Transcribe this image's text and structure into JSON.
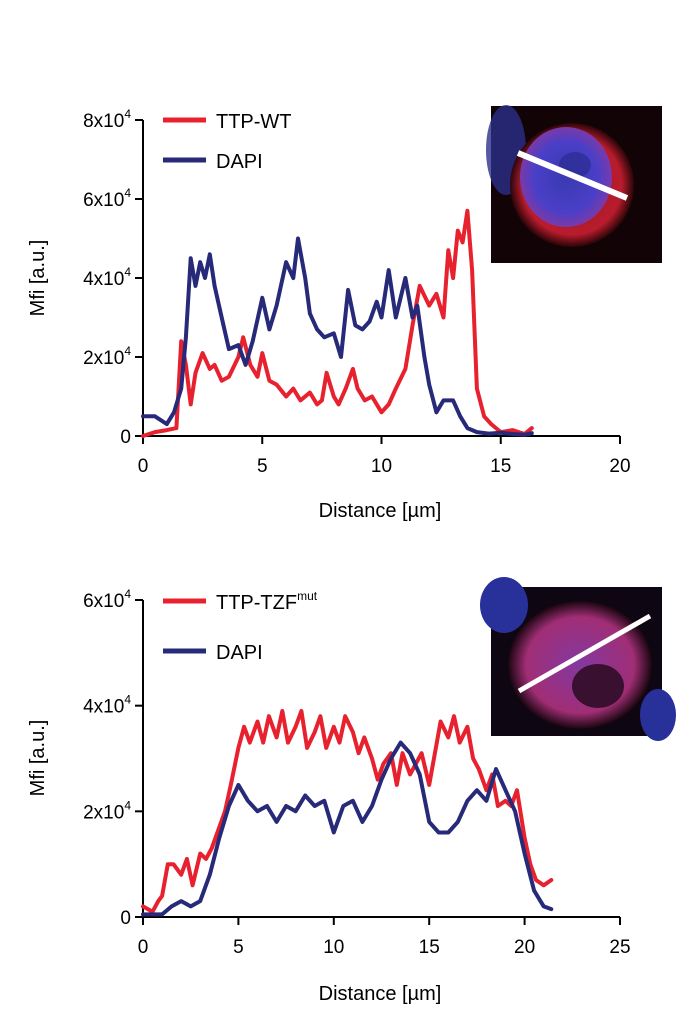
{
  "colors": {
    "ttp": "#e8212e",
    "dapi": "#262a78"
  },
  "chart_data": [
    {
      "type": "line",
      "xlabel": "Distance [µm]",
      "ylabel": "Mfi [a.u.]",
      "xlim": [
        0,
        20
      ],
      "ylim": [
        0,
        80000
      ],
      "xticks": [
        "0",
        "5",
        "10",
        "15",
        "20"
      ],
      "xtick_values": [
        0,
        5,
        10,
        15,
        20
      ],
      "yticks": [
        {
          "value": 0,
          "base": "0",
          "exp": ""
        },
        {
          "value": 20000,
          "base": "2x10",
          "exp": "4"
        },
        {
          "value": 40000,
          "base": "4x10",
          "exp": "4"
        },
        {
          "value": 60000,
          "base": "6x10",
          "exp": "4"
        },
        {
          "value": 80000,
          "base": "8x10",
          "exp": "4"
        }
      ],
      "legend": [
        "TTP-WT",
        "DAPI"
      ],
      "series": [
        {
          "name": "TTP-WT",
          "x": [
            0,
            0.5,
            1,
            1.4,
            1.6,
            1.8,
            2.0,
            2.2,
            2.5,
            2.8,
            3.0,
            3.3,
            3.6,
            4.0,
            4.2,
            4.5,
            4.8,
            5.0,
            5.3,
            5.6,
            6.0,
            6.3,
            6.6,
            7.0,
            7.3,
            7.5,
            7.7,
            8.0,
            8.2,
            8.5,
            8.8,
            9.0,
            9.3,
            9.6,
            10.0,
            10.3,
            10.6,
            11.0,
            11.3,
            11.6,
            12.0,
            12.3,
            12.6,
            12.8,
            13.0,
            13.2,
            13.4,
            13.6,
            13.8,
            14.0,
            14.3,
            14.6,
            15.0,
            15.5,
            16.0,
            16.3
          ],
          "y": [
            0,
            1000,
            1500,
            2000,
            24000,
            18000,
            8000,
            16000,
            21000,
            17000,
            18000,
            14000,
            15000,
            20000,
            25000,
            18000,
            15000,
            21000,
            14000,
            13000,
            10000,
            12000,
            9000,
            11000,
            8000,
            9000,
            16000,
            10000,
            8000,
            12000,
            17000,
            12000,
            9000,
            10000,
            6000,
            8000,
            12000,
            17000,
            28000,
            38000,
            33000,
            36000,
            30000,
            47000,
            40000,
            52000,
            49000,
            57000,
            42000,
            12000,
            5000,
            3000,
            1000,
            1500,
            500,
            2000
          ]
        },
        {
          "name": "DAPI",
          "x": [
            0,
            0.5,
            1,
            1.3,
            1.6,
            1.8,
            2.0,
            2.2,
            2.4,
            2.6,
            2.8,
            3.0,
            3.3,
            3.6,
            4.0,
            4.3,
            4.6,
            5.0,
            5.3,
            5.6,
            6.0,
            6.3,
            6.5,
            6.8,
            7.0,
            7.3,
            7.6,
            8.0,
            8.3,
            8.6,
            8.9,
            9.2,
            9.5,
            9.8,
            10.0,
            10.3,
            10.6,
            11.0,
            11.3,
            11.5,
            11.8,
            12.0,
            12.3,
            12.6,
            13.0,
            13.3,
            13.6,
            14.0,
            14.5,
            15.0,
            15.5,
            16.0,
            16.3
          ],
          "y": [
            5000,
            5000,
            3000,
            6000,
            12000,
            25000,
            45000,
            38000,
            44000,
            40000,
            46000,
            38000,
            30000,
            22000,
            23000,
            18000,
            24000,
            35000,
            27000,
            33000,
            44000,
            40000,
            50000,
            40000,
            31000,
            27000,
            25000,
            26000,
            20000,
            37000,
            28000,
            27000,
            29000,
            34000,
            30000,
            42000,
            30000,
            40000,
            30000,
            33000,
            20000,
            13000,
            6000,
            9000,
            9000,
            5000,
            2000,
            1000,
            600,
            800,
            500,
            300,
            700
          ]
        }
      ]
    },
    {
      "type": "line",
      "xlabel": "Distance [µm]",
      "ylabel": "Mfi [a.u.]",
      "xlim": [
        0,
        25
      ],
      "ylim": [
        0,
        60000
      ],
      "xticks": [
        "0",
        "5",
        "10",
        "15",
        "20",
        "25"
      ],
      "xtick_values": [
        0,
        5,
        10,
        15,
        20,
        25
      ],
      "yticks": [
        {
          "value": 0,
          "base": "0",
          "exp": ""
        },
        {
          "value": 20000,
          "base": "2x10",
          "exp": "4"
        },
        {
          "value": 40000,
          "base": "4x10",
          "exp": "4"
        },
        {
          "value": 60000,
          "base": "6x10",
          "exp": "4"
        }
      ],
      "legend": [
        "TTP-TZF",
        "DAPI"
      ],
      "legend_sup": [
        "mut",
        ""
      ],
      "series": [
        {
          "name": "TTP-TZF",
          "x": [
            0,
            0.5,
            0.8,
            1.0,
            1.3,
            1.6,
            2.0,
            2.3,
            2.6,
            3.0,
            3.3,
            3.6,
            4.0,
            4.3,
            4.6,
            5.0,
            5.3,
            5.6,
            6.0,
            6.3,
            6.6,
            7.0,
            7.3,
            7.6,
            8.0,
            8.3,
            8.6,
            9.0,
            9.3,
            9.6,
            10.0,
            10.3,
            10.6,
            11.0,
            11.3,
            11.6,
            12.0,
            12.3,
            12.6,
            13.0,
            13.3,
            13.6,
            14.0,
            14.3,
            14.6,
            15.0,
            15.3,
            15.6,
            16.0,
            16.3,
            16.6,
            17.0,
            17.3,
            17.6,
            18.0,
            18.3,
            18.6,
            19.0,
            19.3,
            19.6,
            20.0,
            20.3,
            20.6,
            21.0,
            21.4
          ],
          "y": [
            2000,
            1000,
            3000,
            4000,
            10000,
            10000,
            8000,
            11000,
            6000,
            12000,
            11000,
            13000,
            17000,
            20000,
            25000,
            32000,
            36000,
            33000,
            37000,
            33000,
            38000,
            34000,
            39000,
            33000,
            36000,
            39000,
            32000,
            35000,
            38000,
            32000,
            36000,
            33000,
            38000,
            35000,
            31000,
            34000,
            30000,
            26000,
            29000,
            31000,
            25000,
            31000,
            27000,
            29000,
            31000,
            25000,
            31000,
            37000,
            34000,
            38000,
            33000,
            36000,
            30000,
            28000,
            24000,
            27000,
            21000,
            22000,
            21000,
            24000,
            15000,
            10000,
            7000,
            6000,
            7000
          ]
        },
        {
          "name": "DAPI",
          "x": [
            0,
            0.5,
            1.0,
            1.5,
            2.0,
            2.5,
            3.0,
            3.5,
            4.0,
            4.5,
            5.0,
            5.5,
            6.0,
            6.5,
            7.0,
            7.5,
            8.0,
            8.5,
            9.0,
            9.5,
            10.0,
            10.5,
            11.0,
            11.5,
            12.0,
            12.5,
            13.0,
            13.5,
            14.0,
            14.5,
            15.0,
            15.5,
            16.0,
            16.5,
            17.0,
            17.5,
            18.0,
            18.5,
            19.0,
            19.5,
            20.0,
            20.5,
            21.0,
            21.4
          ],
          "y": [
            500,
            500,
            500,
            2000,
            3000,
            2000,
            3000,
            8000,
            15000,
            21000,
            25000,
            22000,
            20000,
            21000,
            18000,
            21000,
            20000,
            23000,
            21000,
            22000,
            16000,
            21000,
            22000,
            18000,
            21000,
            26000,
            30000,
            33000,
            31000,
            27000,
            18000,
            16000,
            16000,
            18000,
            22000,
            24000,
            22000,
            28000,
            24000,
            20000,
            12000,
            5000,
            2000,
            1500
          ]
        }
      ]
    }
  ]
}
